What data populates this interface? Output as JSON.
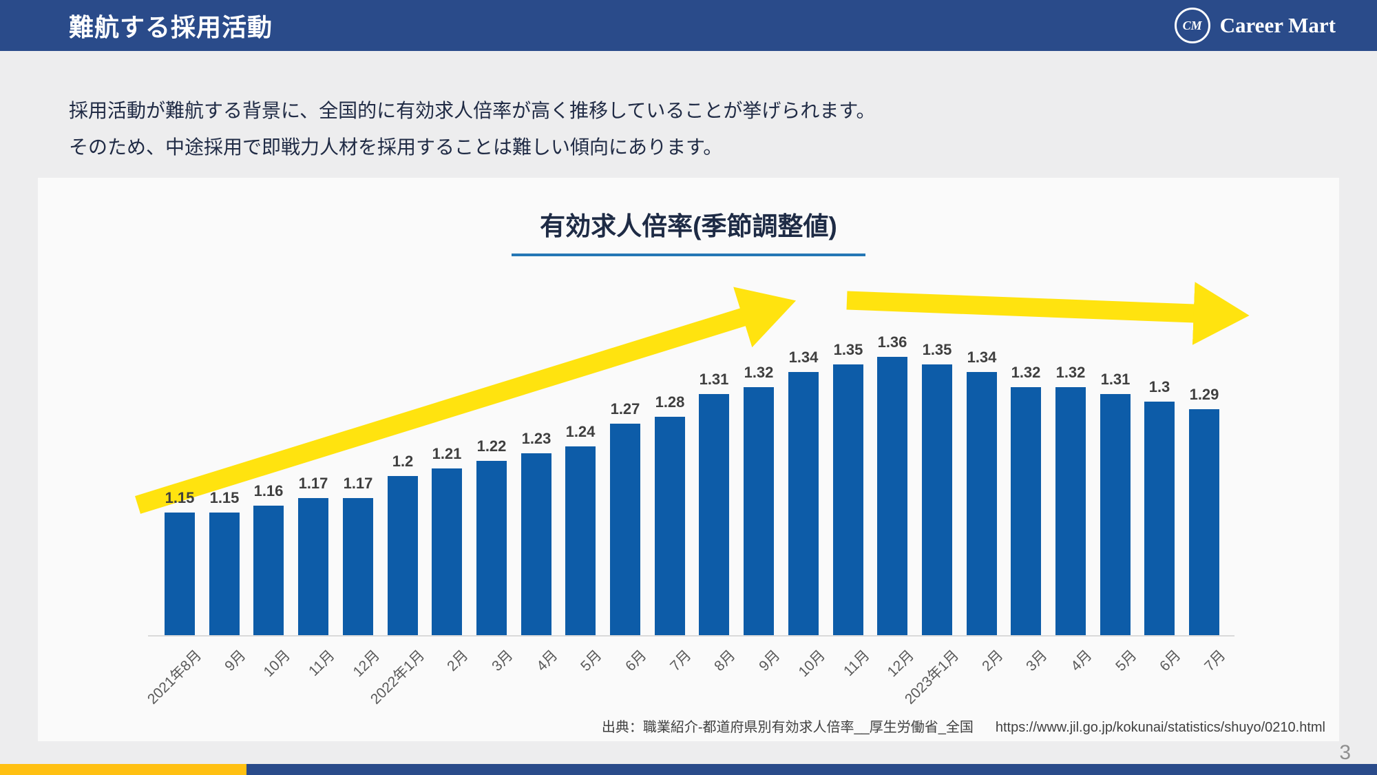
{
  "header": {
    "title": "難航する採用活動",
    "logo": {
      "monogram": "CM",
      "name": "Career Mart"
    }
  },
  "intro": {
    "line1": "採用活動が難航する背景に、全国的に有効求人倍率が高く推移していることが挙げられます。",
    "line2": "そのため、中途採用で即戦力人材を採用することは難しい傾向にあります。"
  },
  "chart_data": {
    "type": "bar",
    "title": "有効求人倍率(季節調整値)",
    "categories": [
      "2021年8月",
      "9月",
      "10月",
      "11月",
      "12月",
      "2022年1月",
      "2月",
      "3月",
      "4月",
      "5月",
      "6月",
      "7月",
      "8月",
      "9月",
      "10月",
      "11月",
      "12月",
      "2023年1月",
      "2月",
      "3月",
      "4月",
      "5月",
      "6月",
      "7月"
    ],
    "values": [
      1.15,
      1.15,
      1.16,
      1.17,
      1.17,
      1.2,
      1.21,
      1.22,
      1.23,
      1.24,
      1.27,
      1.28,
      1.31,
      1.32,
      1.34,
      1.35,
      1.36,
      1.35,
      1.34,
      1.32,
      1.32,
      1.31,
      1.3,
      1.29
    ],
    "value_labels": [
      "1.15",
      "1.15",
      "1.16",
      "1.17",
      "1.17",
      "1.2",
      "1.21",
      "1.22",
      "1.23",
      "1.24",
      "1.27",
      "1.28",
      "1.31",
      "1.32",
      "1.34",
      "1.35",
      "1.36",
      "1.35",
      "1.34",
      "1.32",
      "1.32",
      "1.31",
      "1.3",
      "1.29"
    ],
    "xlabel": "",
    "ylabel": "",
    "ylim": [
      1.0,
      1.4
    ],
    "grid": false,
    "legend": false,
    "bar_color": "#0d5ca8",
    "annotations": [
      "黄色の上昇矢印：2021年8月〜2022年10月の上昇トレンド",
      "黄色の水平〜微減矢印：2022年11月〜2023年7月の高止まり"
    ]
  },
  "source": {
    "label": "出典：職業紹介-都道府県別有効求人倍率__厚生労働省_全国",
    "url": "https://www.jil.go.jp/kokunai/statistics/shuyo/0210.html"
  },
  "page_number": "3",
  "colors": {
    "header_blue": "#2a4b8a",
    "bar_blue": "#0d5ca8",
    "arrow_yellow": "#ffe30f",
    "footer_yellow": "#ffc012",
    "title_underline": "#2577b5",
    "text_dark_navy": "#202b45"
  }
}
